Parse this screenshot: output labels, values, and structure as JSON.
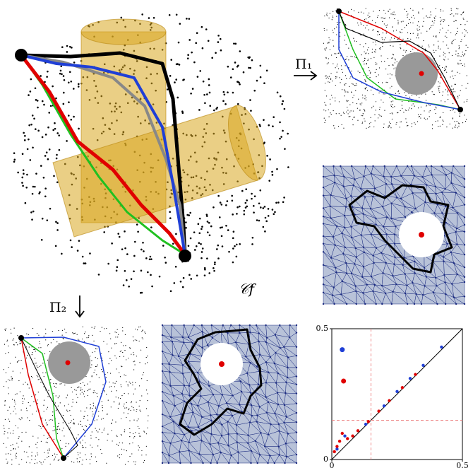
{
  "labels": {
    "proj1": "Π₁",
    "proj2": "Π₂",
    "complex": "𝒞𝑓"
  },
  "chart_data": {
    "type": "scatter",
    "xlim": [
      0,
      0.5
    ],
    "ylim": [
      0,
      0.5
    ],
    "xticks": [
      0,
      0.5
    ],
    "yticks": [
      0,
      0.5
    ],
    "threshold": 0.15,
    "series": [
      {
        "color": "#1f3fd6",
        "x": [
          0.04,
          0.02,
          0.05,
          0.13,
          0.2,
          0.25,
          0.3,
          0.35,
          0.42
        ],
        "y": [
          0.42,
          0.04,
          0.09,
          0.135,
          0.205,
          0.26,
          0.31,
          0.36,
          0.43
        ]
      },
      {
        "color": "#e00000",
        "x": [
          0.045,
          0.01,
          0.02,
          0.03,
          0.04,
          0.06,
          0.08,
          0.1,
          0.14,
          0.18,
          0.22,
          0.27,
          0.32
        ],
        "y": [
          0.3,
          0.03,
          0.05,
          0.07,
          0.1,
          0.08,
          0.09,
          0.11,
          0.145,
          0.185,
          0.225,
          0.275,
          0.325
        ]
      }
    ]
  }
}
